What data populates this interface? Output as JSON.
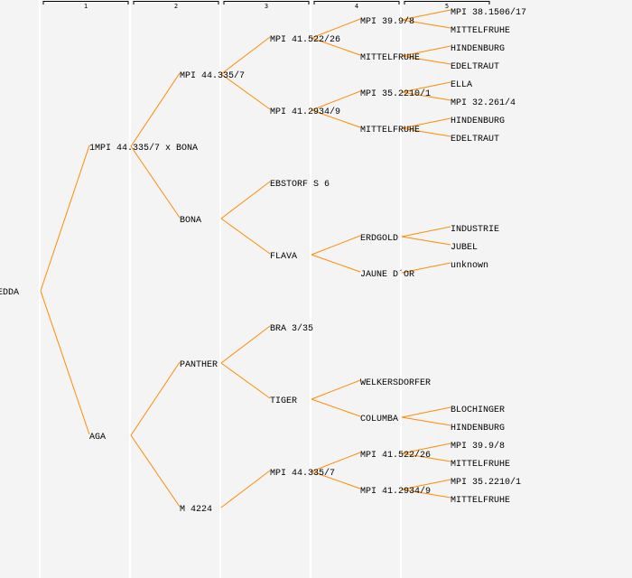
{
  "colors": {
    "background": "#f4f4f4",
    "line": "#ff8c00",
    "separator": "#ffffff",
    "text": "#000000"
  },
  "generation_headers": [
    "1",
    "2",
    "3",
    "4",
    "5"
  ],
  "pedigree": {
    "name": "EDDA",
    "parents": [
      {
        "name": "1MPI 44.335/7 x BONA",
        "parents": [
          {
            "name": "MPI 44.335/7",
            "parents": [
              {
                "name": "MPI 41.522/26",
                "parents": [
                  {
                    "name": "MPI 39.9/8",
                    "parents": [
                      {
                        "name": "MPI 38.1506/17"
                      },
                      {
                        "name": "MITTELFRUHE"
                      }
                    ]
                  },
                  {
                    "name": "MITTELFRUHE",
                    "parents": [
                      {
                        "name": "HINDENBURG"
                      },
                      {
                        "name": "EDELTRAUT"
                      }
                    ]
                  }
                ]
              },
              {
                "name": "MPI 41.2934/9",
                "parents": [
                  {
                    "name": "MPI 35.2210/1",
                    "parents": [
                      {
                        "name": "ELLA"
                      },
                      {
                        "name": "MPI 32.261/4"
                      }
                    ]
                  },
                  {
                    "name": "MITTELFRUHE",
                    "parents": [
                      {
                        "name": "HINDENBURG"
                      },
                      {
                        "name": "EDELTRAUT"
                      }
                    ]
                  }
                ]
              }
            ]
          },
          {
            "name": "BONA",
            "parents": [
              {
                "name": "EBSTORF S 6"
              },
              {
                "name": "FLAVA",
                "parents": [
                  {
                    "name": "ERDGOLD",
                    "parents": [
                      {
                        "name": "INDUSTRIE"
                      },
                      {
                        "name": "JUBEL"
                      }
                    ]
                  },
                  {
                    "name": "JAUNE D´OR",
                    "parents": [
                      {
                        "name": "unknown"
                      }
                    ]
                  }
                ]
              }
            ]
          }
        ]
      },
      {
        "name": "AGA",
        "parents": [
          {
            "name": "PANTHER",
            "parents": [
              {
                "name": "BRA 3/35"
              },
              {
                "name": "TIGER",
                "parents": [
                  {
                    "name": "WELKERSDORFER"
                  },
                  {
                    "name": "COLUMBA",
                    "parents": [
                      {
                        "name": "BLOCHINGER"
                      },
                      {
                        "name": "HINDENBURG"
                      }
                    ]
                  }
                ]
              }
            ]
          },
          {
            "name": "M 4224",
            "parents": [
              {
                "name": "MPI 44.335/7",
                "parents": [
                  {
                    "name": "MPI 41.522/26",
                    "parents": [
                      {
                        "name": "MPI 39.9/8"
                      },
                      {
                        "name": "MITTELFRUHE"
                      }
                    ]
                  },
                  {
                    "name": "MPI 41.2934/9",
                    "parents": [
                      {
                        "name": "MPI 35.2210/1"
                      },
                      {
                        "name": "MITTELFRUHE"
                      }
                    ]
                  }
                ]
              }
            ]
          }
        ]
      }
    ]
  }
}
